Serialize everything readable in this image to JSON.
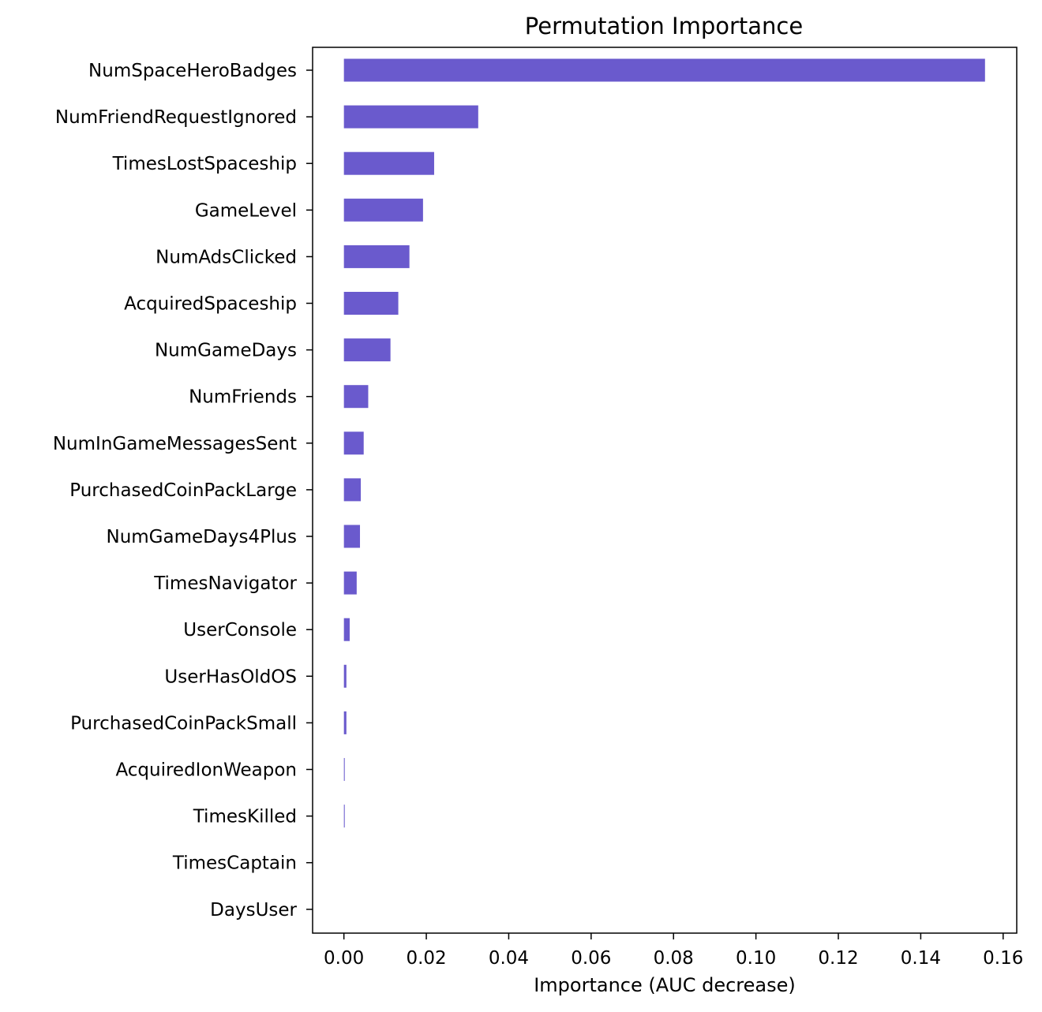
{
  "chart_data": {
    "type": "bar",
    "orientation": "horizontal",
    "title": "Permutation Importance",
    "xlabel": "Importance (AUC decrease)",
    "ylabel": "",
    "xlim": [
      -0.0076,
      0.1633
    ],
    "xticks": [
      "0.00",
      "0.02",
      "0.04",
      "0.06",
      "0.08",
      "0.10",
      "0.12",
      "0.14",
      "0.16"
    ],
    "xtick_values": [
      0,
      0.02,
      0.04,
      0.06,
      0.08,
      0.1,
      0.12,
      0.14,
      0.16
    ],
    "grid": false,
    "bar_color": "#6a5acd",
    "categories": [
      "NumSpaceHeroBadges",
      "NumFriendRequestIgnored",
      "TimesLostSpaceship",
      "GameLevel",
      "NumAdsClicked",
      "AcquiredSpaceship",
      "NumGameDays",
      "NumFriends",
      "NumInGameMessagesSent",
      "PurchasedCoinPackLarge",
      "NumGameDays4Plus",
      "TimesNavigator",
      "UserConsole",
      "UserHasOldOS",
      "PurchasedCoinPackSmall",
      "AcquiredIonWeapon",
      "TimesKilled",
      "TimesCaptain",
      "DaysUser"
    ],
    "values": [
      0.1556,
      0.0326,
      0.0219,
      0.0192,
      0.0159,
      0.0132,
      0.0113,
      0.0059,
      0.0048,
      0.0041,
      0.0039,
      0.0031,
      0.0014,
      0.0006,
      0.0006,
      0.0002,
      0.0002,
      0.0,
      0.0
    ]
  }
}
